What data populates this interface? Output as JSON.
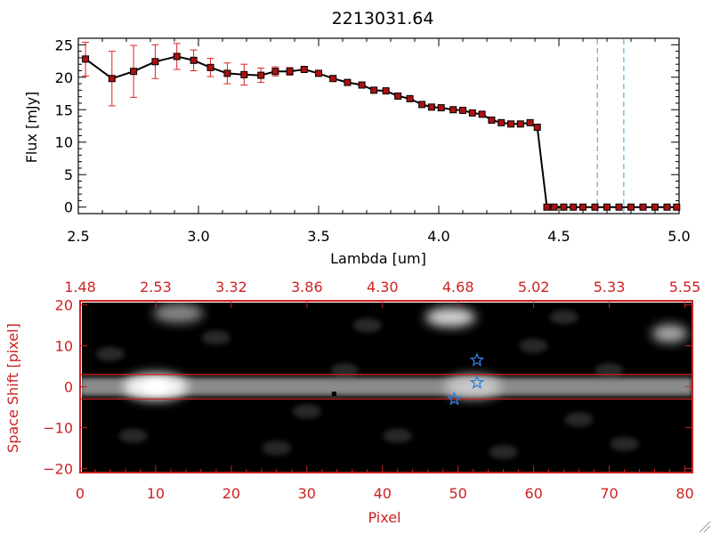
{
  "colors": {
    "axis_black": "#000000",
    "accent_red": "#cc2222",
    "errorbar_red": "#dd2222",
    "marker_fill": "#aa1111",
    "dashed_cyan": "#3fa0c8",
    "star_blue": "#2f7fe0"
  },
  "chart_data": [
    {
      "type": "line",
      "title": "2213031.64",
      "xlabel": "Lambda [um]",
      "ylabel": "Flux [mJy]",
      "xlim": [
        2.5,
        5.0
      ],
      "ylim": [
        -1,
        26
      ],
      "xticks": [
        2.5,
        3.0,
        3.5,
        4.0,
        4.5,
        5.0
      ],
      "xtick_labels": [
        "2.5",
        "3.0",
        "3.5",
        "4.0",
        "4.5",
        "5.0"
      ],
      "yticks": [
        0,
        5,
        10,
        15,
        20,
        25
      ],
      "ytick_labels": [
        "0",
        "5",
        "10",
        "15",
        "20",
        "25"
      ],
      "series": [
        {
          "name": "flux",
          "x": [
            2.53,
            2.64,
            2.73,
            2.82,
            2.91,
            2.98,
            3.05,
            3.12,
            3.19,
            3.26,
            3.32,
            3.38,
            3.44,
            3.5,
            3.56,
            3.62,
            3.68,
            3.73,
            3.78,
            3.83,
            3.88,
            3.93,
            3.97,
            4.01,
            4.06,
            4.1,
            4.14,
            4.18,
            4.22,
            4.26,
            4.3,
            4.34,
            4.38,
            4.41,
            4.45,
            4.48,
            4.52,
            4.56,
            4.6,
            4.65,
            4.7,
            4.75,
            4.8,
            4.85,
            4.9,
            4.95,
            4.99
          ],
          "y": [
            22.8,
            19.8,
            20.9,
            22.4,
            23.2,
            22.6,
            21.5,
            20.6,
            20.4,
            20.3,
            20.9,
            20.9,
            21.2,
            20.6,
            19.8,
            19.2,
            18.8,
            18.0,
            17.9,
            17.1,
            16.7,
            15.8,
            15.4,
            15.3,
            15.0,
            14.9,
            14.5,
            14.3,
            13.4,
            13.0,
            12.8,
            12.8,
            13.0,
            12.3,
            0,
            0,
            0,
            0,
            0,
            0,
            0,
            0,
            0,
            0,
            0,
            0,
            0
          ],
          "yerr": [
            2.6,
            4.2,
            4.0,
            2.6,
            2.0,
            1.6,
            1.4,
            1.6,
            1.6,
            1.1,
            0.7,
            0.6,
            0.4,
            0.3,
            0.2,
            0.2,
            0.2,
            0.2,
            0.2,
            0.2,
            0.2,
            0.2,
            0.2,
            0.2,
            0.2,
            0.2,
            0.2,
            0.2,
            0.2,
            0.2,
            0.2,
            0.2,
            0.2,
            0.2,
            0.1,
            0.1,
            0.1,
            0.1,
            0.1,
            0.1,
            0.1,
            0.1,
            0.1,
            0.1,
            0.1,
            0.1,
            0.1
          ]
        }
      ],
      "vertical_dashed_lines_x": [
        4.66,
        4.77
      ]
    },
    {
      "type": "heatmap",
      "xlabel": "Pixel",
      "ylabel": "Space Shift [pixel]",
      "xlim": [
        0,
        81
      ],
      "ylim": [
        -21,
        21
      ],
      "xticks": [
        0,
        10,
        20,
        30,
        40,
        50,
        60,
        70,
        80
      ],
      "xtick_labels": [
        "0",
        "10",
        "20",
        "30",
        "40",
        "50",
        "60",
        "70",
        "80"
      ],
      "yticks": [
        -20,
        -10,
        0,
        10,
        20
      ],
      "ytick_labels": [
        "−20",
        "−10",
        "0",
        "10",
        "20"
      ],
      "top_axis_labels": [
        "1.48",
        "2.53",
        "3.32",
        "3.86",
        "4.30",
        "4.68",
        "5.02",
        "5.33",
        "5.55"
      ],
      "extraction_band_y": [
        -3,
        3
      ],
      "star_markers": [
        [
          49.5,
          -3.0
        ],
        [
          52.5,
          1.0
        ],
        [
          52.5,
          6.5
        ]
      ],
      "blobs": [
        {
          "label": "main trace",
          "x": 45,
          "y": 0,
          "intensity": 0.5
        },
        {
          "label": "bright core",
          "x": 10,
          "y": 0,
          "intensity": 0.95
        },
        {
          "label": "secondary core",
          "x": 52,
          "y": 0,
          "intensity": 0.7
        },
        {
          "label": "upper source",
          "x": 49,
          "y": 17,
          "intensity": 0.75
        },
        {
          "label": "upper source",
          "x": 13,
          "y": 18,
          "intensity": 0.35
        },
        {
          "label": "edge source",
          "x": 78,
          "y": 13,
          "intensity": 0.55
        }
      ]
    }
  ]
}
